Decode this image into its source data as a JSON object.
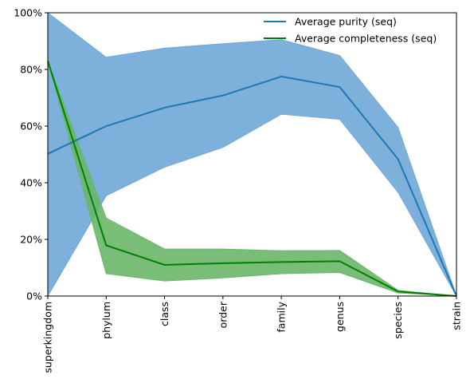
{
  "chart_data": {
    "type": "line",
    "categories": [
      "superkingdom",
      "phylum",
      "class",
      "order",
      "family",
      "genus",
      "species",
      "strain"
    ],
    "ylim": [
      0,
      100
    ],
    "y_ticks": [
      0,
      20,
      40,
      60,
      80,
      100
    ],
    "y_tick_labels": [
      "0%",
      "20%",
      "40%",
      "60%",
      "80%",
      "100%"
    ],
    "legend_position": "top-right",
    "grid": false,
    "series": [
      {
        "name": "Average purity (seq)",
        "color": "#1f77b4",
        "band_color": "#6fa8d8",
        "values": [
          50.2,
          60.0,
          66.5,
          70.8,
          77.5,
          73.8,
          48.3,
          0
        ],
        "upper": [
          100,
          84.3,
          87.5,
          89.1,
          90.5,
          84.9,
          59.5,
          0
        ],
        "lower": [
          0,
          35.4,
          45.5,
          52.5,
          64.2,
          62.4,
          36.6,
          0
        ]
      },
      {
        "name": "Average completeness (seq)",
        "color": "#008000",
        "band_color": "#6ab66a",
        "values": [
          83.0,
          17.9,
          11.0,
          11.6,
          12.0,
          12.3,
          1.6,
          0
        ],
        "upper": [
          83.0,
          27.5,
          16.6,
          16.6,
          16.0,
          16.1,
          2.0,
          0
        ],
        "lower": [
          83.0,
          7.9,
          5.3,
          6.4,
          7.9,
          8.3,
          1.1,
          0
        ]
      }
    ]
  }
}
